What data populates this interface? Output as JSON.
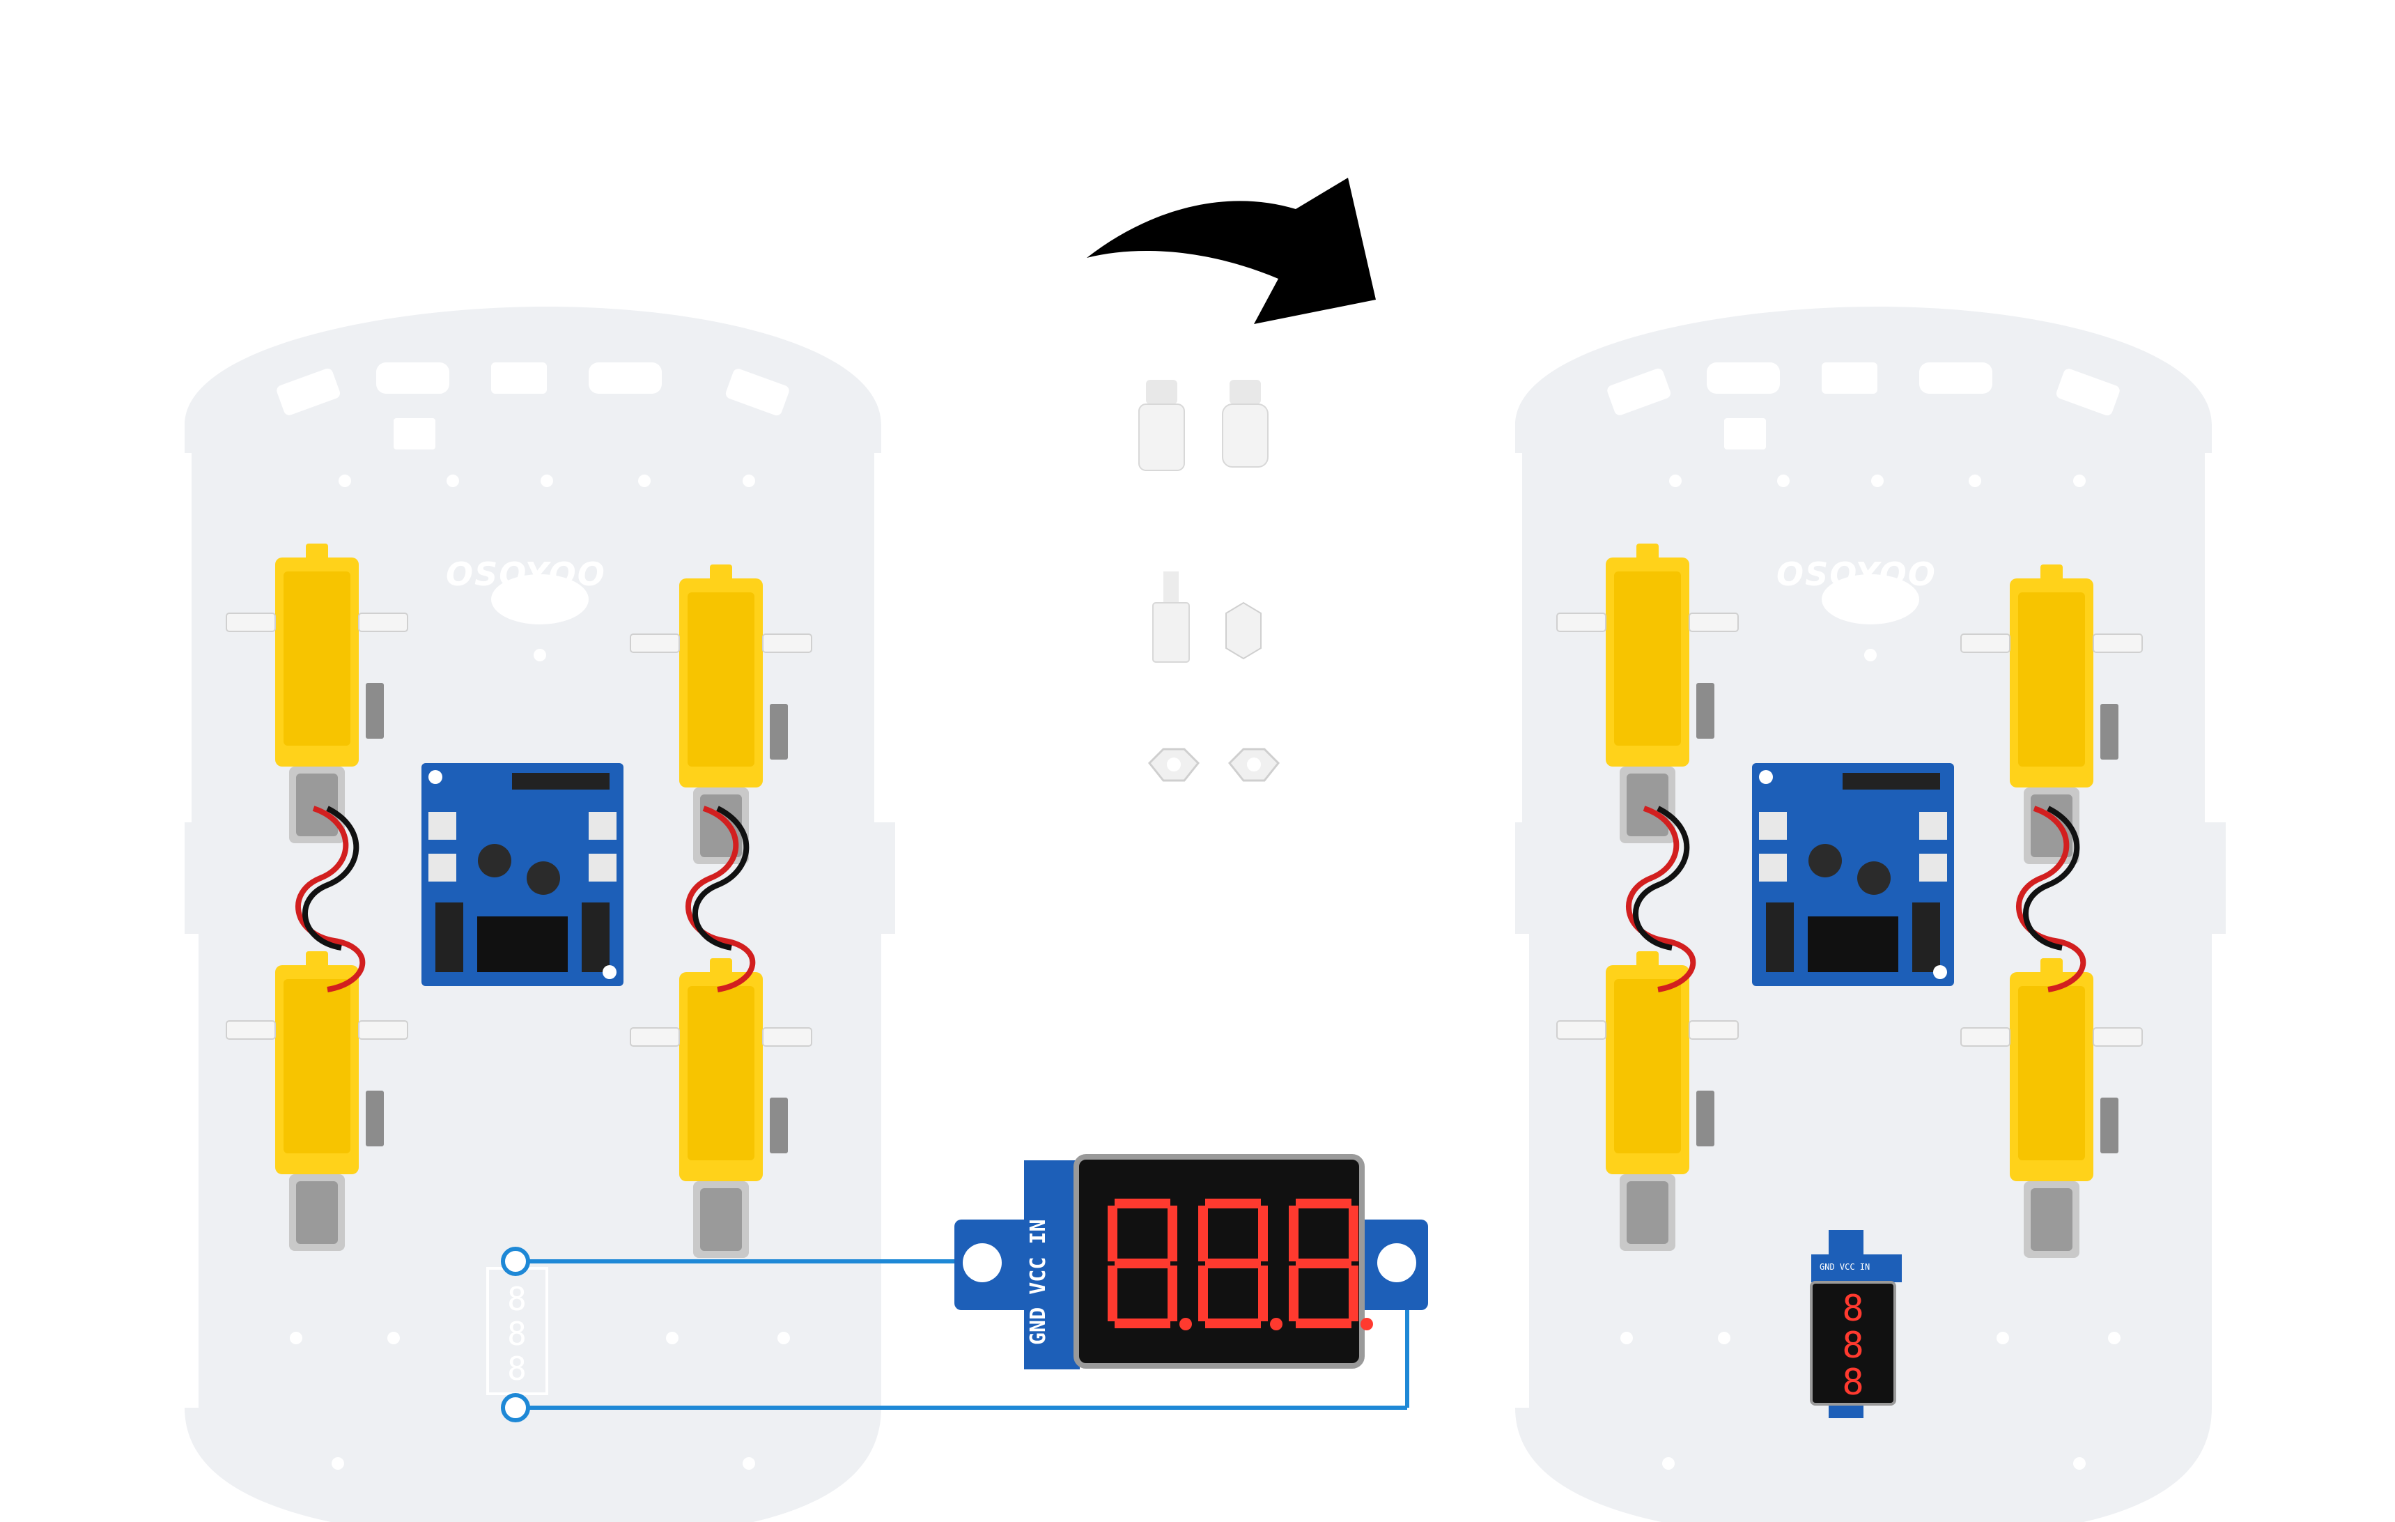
{
  "diagram": {
    "brand_left": "OSOYOO",
    "brand_right": "OSOYOO",
    "voltmeter_pins": "GND VCC IN",
    "voltmeter_pins_small": "GND VCC IN",
    "colors": {
      "plate": "#eef0f3",
      "motor": "#ffd21a",
      "pcb": "#1d5fb8",
      "wire": "#1e88d6",
      "arrow": "#000000",
      "led": "#ff3a2f"
    }
  }
}
